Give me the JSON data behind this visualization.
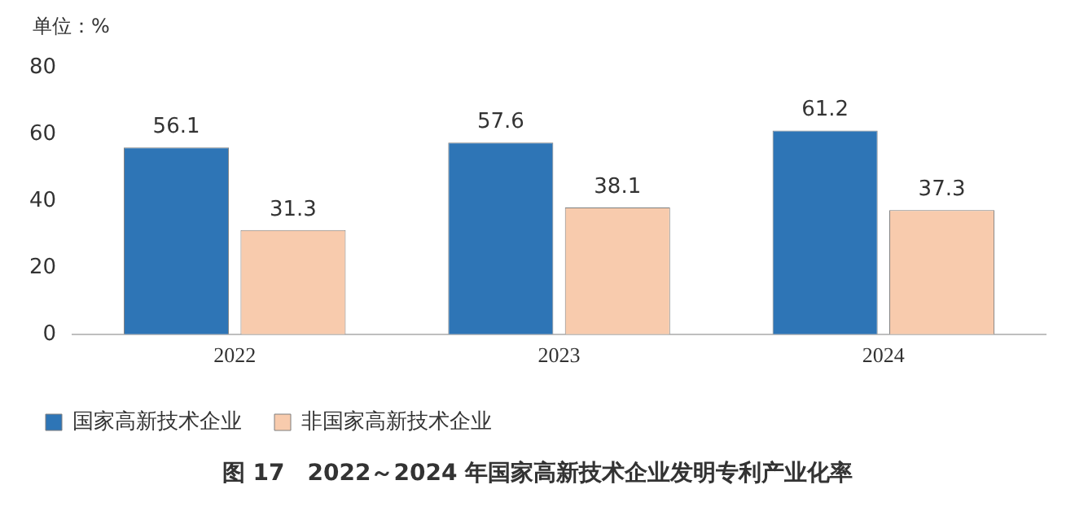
{
  "chart_data": {
    "type": "bar",
    "title": "图 17　2022～2024 年国家高新技术企业发明专利产业化率",
    "ylabel": "单位：%",
    "categories": [
      "2022",
      "2023",
      "2024"
    ],
    "series": [
      {
        "name": "国家高新技术企业",
        "color": "#2e75b6",
        "values": [
          56.1,
          57.6,
          61.2
        ]
      },
      {
        "name": "非国家高新技术企业",
        "color": "#f8cbad",
        "values": [
          31.3,
          38.1,
          37.3
        ]
      }
    ],
    "ylim": [
      0,
      80
    ],
    "yticks": [
      0,
      20,
      40,
      60,
      80
    ],
    "grid": false,
    "legend": "bottom",
    "data_labels": true
  }
}
